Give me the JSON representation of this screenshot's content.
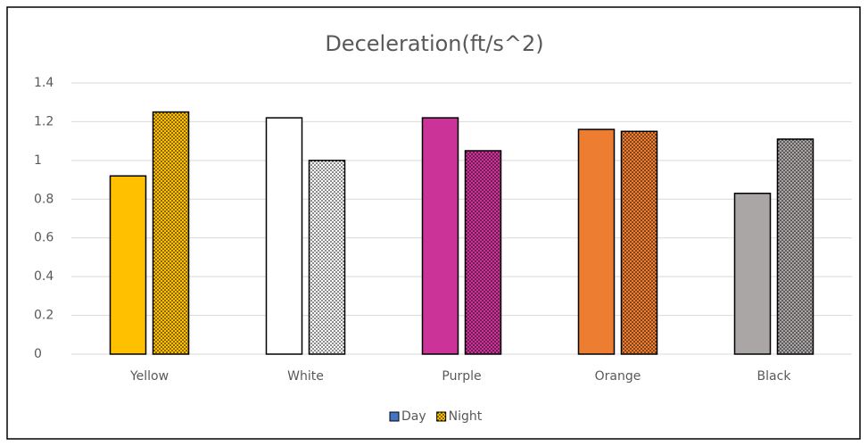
{
  "chart_data": {
    "type": "bar",
    "title": "Deceleration(ft/s^2)",
    "categories": [
      "Yellow",
      "White",
      "Purple",
      "Orange",
      "Black"
    ],
    "series": [
      {
        "name": "Day",
        "color": "#4472c4",
        "colors": [
          "#ffc000",
          "#ffffff",
          "#cc3399",
          "#ed7d31",
          "#aaa6a6"
        ],
        "values": [
          0.92,
          1.22,
          1.22,
          1.16,
          0.83
        ]
      },
      {
        "name": "Night",
        "color": "#ffc000",
        "pattern": "dots",
        "colors": [
          "#ffc000",
          "#ffffff",
          "#cc3399",
          "#ed7d31",
          "#aaa6a6"
        ],
        "values": [
          1.25,
          1.0,
          1.05,
          1.15,
          1.11
        ]
      }
    ],
    "ylim": [
      0,
      1.4
    ],
    "yticks": [
      0,
      0.2,
      0.4,
      0.6,
      0.8,
      1,
      1.2,
      1.4
    ],
    "grid": true,
    "legend": "bottom"
  }
}
